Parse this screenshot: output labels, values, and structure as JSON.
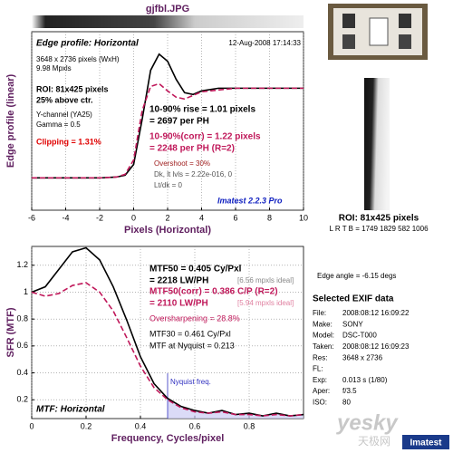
{
  "header": {
    "title": "gjfbl.JPG"
  },
  "chart_data": [
    {
      "type": "line",
      "title": "Edge profile: Horizontal",
      "subtitle": "12-Aug-2008 17:14:33",
      "x_label": "Pixels (Horizontal)",
      "y_label": "Edge profile (linear)",
      "x": [
        -6,
        -5,
        -4,
        -3,
        -2,
        -1,
        -0.5,
        0,
        0.5,
        1,
        1.5,
        2,
        2.5,
        3,
        3.5,
        4,
        5,
        6,
        7,
        8,
        9,
        10
      ],
      "series": [
        {
          "name": "Edge",
          "color": "#000000",
          "dash": false,
          "values": [
            0,
            0,
            0,
            0,
            0,
            0.01,
            0.03,
            0.15,
            0.65,
            1.2,
            1.38,
            1.3,
            1.1,
            0.95,
            0.93,
            0.97,
            1.0,
            1.0,
            1.0,
            1.0,
            1.0,
            1.0
          ]
        },
        {
          "name": "Edge (corr)",
          "color": "#c0185a",
          "dash": true,
          "values": [
            0,
            0,
            0,
            0,
            0,
            0.01,
            0.04,
            0.2,
            0.75,
            1.02,
            1.05,
            0.97,
            0.9,
            0.88,
            0.92,
            0.96,
            0.98,
            1.0,
            1.0,
            1.0,
            1.0,
            1.0
          ]
        }
      ],
      "xlim": [
        -6,
        10
      ],
      "ylim": [
        -0.36,
        1.63
      ],
      "xticks": [
        -6,
        -4,
        -2,
        0,
        2,
        4,
        6,
        8,
        10
      ],
      "yticks": [],
      "grid": true,
      "annotations": [
        "3648 x 2736 pixels (WxH)",
        "9.98 Mpxls",
        "ROI: 81x425 pixels",
        "25% above ctr.",
        "Y-channel  (YA25)",
        "Gamma = 0.5",
        "Clipping =   1.31%",
        "10-90% rise = 1.01 pixels",
        "= 2697 per PH",
        "10-90%(corr) = 1.22 pixels",
        "= 2248 per PH  (R=2)",
        "Overshoot = 30%",
        "Dk, lt lvls = 2.22e-016, 0",
        "Lt/dk = 0",
        "Imatest 2.2.3 Pro"
      ]
    },
    {
      "type": "line",
      "title": "MTF: Horizontal",
      "x_label": "Frequency, Cycles/pixel",
      "y_label": "SFR (MTF)",
      "x": [
        0,
        0.05,
        0.1,
        0.15,
        0.2,
        0.25,
        0.3,
        0.35,
        0.4,
        0.45,
        0.5,
        0.55,
        0.6,
        0.65,
        0.7,
        0.75,
        0.8,
        0.85,
        0.9,
        0.95,
        1.0
      ],
      "series": [
        {
          "name": "MTF",
          "color": "#000000",
          "dash": false,
          "values": [
            1.0,
            1.04,
            1.17,
            1.3,
            1.33,
            1.24,
            1.04,
            0.79,
            0.52,
            0.32,
            0.21,
            0.15,
            0.12,
            0.1,
            0.12,
            0.09,
            0.1,
            0.08,
            0.1,
            0.08,
            0.09
          ]
        },
        {
          "name": "MTF (corr)",
          "color": "#c0185a",
          "dash": true,
          "values": [
            1.0,
            0.97,
            0.99,
            1.05,
            1.07,
            1.0,
            0.86,
            0.66,
            0.45,
            0.29,
            0.2,
            0.14,
            0.11,
            0.1,
            0.11,
            0.09,
            0.09,
            0.08,
            0.09,
            0.08,
            0.09
          ]
        }
      ],
      "xlim": [
        0,
        1
      ],
      "ylim": [
        0.06,
        1.34
      ],
      "xticks": [
        0,
        0.2,
        0.4,
        0.6,
        0.8
      ],
      "yticks": [
        0.2,
        0.4,
        0.6,
        0.8,
        1,
        1.2
      ],
      "grid": true,
      "nyquist": {
        "x": 0.5,
        "label": "Nyquist freq."
      },
      "annotations": [
        "MTF50 = 0.405 Cy/Pxl",
        "= 2218 LW/PH",
        "[6.56 mpxls ideal]",
        "MTF50(corr) = 0.386 C/P  (R=2)",
        "= 2110 LW/PH",
        "[5.94 mpxls ideal]",
        "Oversharpening = 28.8%",
        "MTF30 = 0.461 Cy/Pxl",
        "MTF at Nyquist = 0.213"
      ]
    }
  ],
  "roi_panel": {
    "title": "ROI: 81x425 pixels",
    "coords": "L R T B = 1749 1829  582 1006",
    "edge_angle": "Edge angle = -6.15 degs"
  },
  "exif": {
    "title": "Selected EXIF data",
    "rows": [
      [
        "File:",
        "2008:08:12 16:09:22"
      ],
      [
        "Make:",
        "SONY"
      ],
      [
        "Model:",
        "DSC-T000"
      ],
      [
        "Taken:",
        "2008:08:12 16:09:23"
      ],
      [
        "Res:",
        "3648 x 2736"
      ],
      [
        "FL:"
      ],
      [
        "Exp:",
        "0.013 s  (1/80)"
      ],
      [
        "Aper:",
        "f/3.5"
      ],
      [
        "ISO:",
        "80"
      ]
    ]
  },
  "watermark": {
    "site": "yesky",
    "site_cn": "天极网",
    "logo": "Imatest"
  }
}
